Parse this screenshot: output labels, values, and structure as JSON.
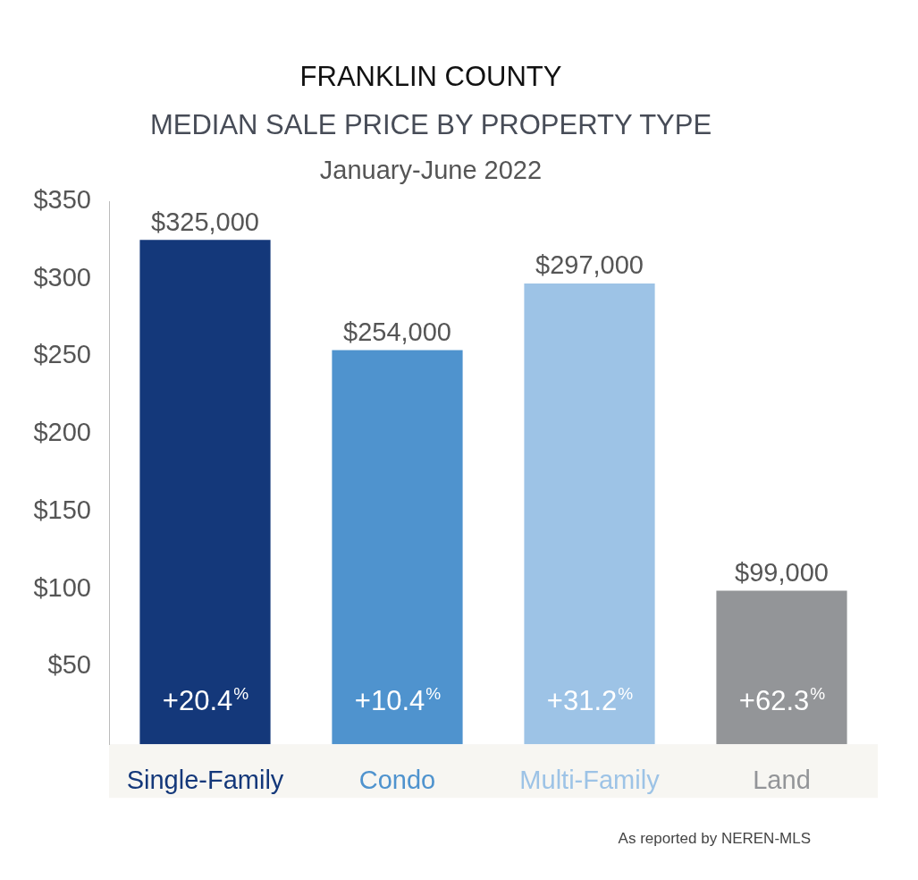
{
  "chart_data": {
    "type": "bar",
    "title": [
      "FRANKLIN COUNTY",
      "MEDIAN SALE PRICE BY PROPERTY TYPE"
    ],
    "subtitle": "January-June 2022",
    "annotations": [
      "As reported by NEREN-MLS"
    ],
    "categories": [
      "Single-Family",
      "Condo",
      "Multi-Family",
      "Land"
    ],
    "values": [
      325,
      254,
      297,
      99
    ],
    "value_labels": [
      "$325,000",
      "$254,000",
      "$297,000",
      "$99,000"
    ],
    "change_labels": [
      "+20.4%",
      "+10.4%",
      "+31.2%",
      "+62.3%"
    ],
    "colors": [
      "#14387a",
      "#4f93ce",
      "#9dc3e6",
      "#939598"
    ],
    "ylim": [
      0,
      350
    ],
    "yticks": [
      {
        "value": 50,
        "label": "$50"
      },
      {
        "value": 100,
        "label": "$100"
      },
      {
        "value": 150,
        "label": "$150"
      },
      {
        "value": 200,
        "label": "$200"
      },
      {
        "value": 250,
        "label": "$250"
      },
      {
        "value": 300,
        "label": "$300"
      },
      {
        "value": 350,
        "label": "$350"
      }
    ],
    "grid": false,
    "data_labels": true
  }
}
